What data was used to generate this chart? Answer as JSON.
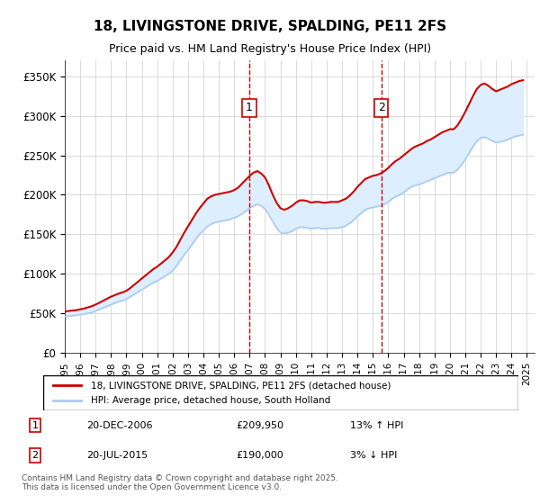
{
  "title": "18, LIVINGSTONE DRIVE, SPALDING, PE11 2FS",
  "subtitle": "Price paid vs. HM Land Registry's House Price Index (HPI)",
  "legend_line1": "18, LIVINGSTONE DRIVE, SPALDING, PE11 2FS (detached house)",
  "legend_line2": "HPI: Average price, detached house, South Holland",
  "transaction1_label": "1",
  "transaction1_date": "20-DEC-2006",
  "transaction1_price": "£209,950",
  "transaction1_hpi": "13% ↑ HPI",
  "transaction1_year": 2006.97,
  "transaction2_label": "2",
  "transaction2_date": "20-JUL-2015",
  "transaction2_price": "£190,000",
  "transaction2_hpi": "3% ↓ HPI",
  "transaction2_year": 2015.55,
  "ylabel_ticks": [
    "£0",
    "£50K",
    "£100K",
    "£150K",
    "£200K",
    "£250K",
    "£300K",
    "£350K"
  ],
  "ytick_values": [
    0,
    50000,
    100000,
    150000,
    200000,
    250000,
    300000,
    350000
  ],
  "ylim": [
    0,
    370000
  ],
  "xlim_start": 1995,
  "xlim_end": 2025.5,
  "background_color": "#ffffff",
  "plot_bg_color": "#ffffff",
  "grid_color": "#cccccc",
  "shaded_region_color": "#ddeeff",
  "red_line_color": "#cc0000",
  "blue_line_color": "#aaccee",
  "marker_line_color": "#cc0000",
  "copyright_text": "Contains HM Land Registry data © Crown copyright and database right 2025.\nThis data is licensed under the Open Government Licence v3.0.",
  "hpi_data": {
    "years": [
      1995.0,
      1995.25,
      1995.5,
      1995.75,
      1996.0,
      1996.25,
      1996.5,
      1996.75,
      1997.0,
      1997.25,
      1997.5,
      1997.75,
      1998.0,
      1998.25,
      1998.5,
      1998.75,
      1999.0,
      1999.25,
      1999.5,
      1999.75,
      2000.0,
      2000.25,
      2000.5,
      2000.75,
      2001.0,
      2001.25,
      2001.5,
      2001.75,
      2002.0,
      2002.25,
      2002.5,
      2002.75,
      2003.0,
      2003.25,
      2003.5,
      2003.75,
      2004.0,
      2004.25,
      2004.5,
      2004.75,
      2005.0,
      2005.25,
      2005.5,
      2005.75,
      2006.0,
      2006.25,
      2006.5,
      2006.75,
      2007.0,
      2007.25,
      2007.5,
      2007.75,
      2008.0,
      2008.25,
      2008.5,
      2008.75,
      2009.0,
      2009.25,
      2009.5,
      2009.75,
      2010.0,
      2010.25,
      2010.5,
      2010.75,
      2011.0,
      2011.25,
      2011.5,
      2011.75,
      2012.0,
      2012.25,
      2012.5,
      2012.75,
      2013.0,
      2013.25,
      2013.5,
      2013.75,
      2014.0,
      2014.25,
      2014.5,
      2014.75,
      2015.0,
      2015.25,
      2015.5,
      2015.75,
      2016.0,
      2016.25,
      2016.5,
      2016.75,
      2017.0,
      2017.25,
      2017.5,
      2017.75,
      2018.0,
      2018.25,
      2018.5,
      2018.75,
      2019.0,
      2019.25,
      2019.5,
      2019.75,
      2020.0,
      2020.25,
      2020.5,
      2020.75,
      2021.0,
      2021.25,
      2021.5,
      2021.75,
      2022.0,
      2022.25,
      2022.5,
      2022.75,
      2023.0,
      2023.25,
      2023.5,
      2023.75,
      2024.0,
      2024.25,
      2024.5,
      2024.75
    ],
    "values": [
      46000,
      46500,
      47000,
      47500,
      48500,
      49000,
      50000,
      51000,
      53000,
      55000,
      57000,
      59000,
      61000,
      63000,
      65000,
      66000,
      68000,
      71000,
      74000,
      77000,
      80000,
      83000,
      86000,
      89000,
      91000,
      94000,
      97000,
      100000,
      104000,
      110000,
      117000,
      124000,
      130000,
      137000,
      144000,
      150000,
      155000,
      160000,
      163000,
      165000,
      166000,
      167000,
      168000,
      169000,
      171000,
      173000,
      176000,
      179000,
      183000,
      186000,
      188000,
      186000,
      182000,
      175000,
      166000,
      158000,
      152000,
      151000,
      152000,
      154000,
      157000,
      159000,
      159000,
      158000,
      157000,
      158000,
      158000,
      157000,
      157000,
      158000,
      158000,
      158000,
      159000,
      161000,
      164000,
      168000,
      173000,
      177000,
      181000,
      183000,
      184000,
      185000,
      186000,
      188000,
      191000,
      195000,
      198000,
      200000,
      203000,
      207000,
      210000,
      212000,
      213000,
      215000,
      217000,
      219000,
      221000,
      223000,
      225000,
      227000,
      228000,
      228000,
      232000,
      238000,
      245000,
      253000,
      261000,
      268000,
      272000,
      273000,
      271000,
      268000,
      266000,
      267000,
      268000,
      270000,
      272000,
      274000,
      275000,
      276000
    ]
  },
  "red_line_data": {
    "years": [
      1995.0,
      1995.25,
      1995.5,
      1995.75,
      1996.0,
      1996.25,
      1996.5,
      1996.75,
      1997.0,
      1997.25,
      1997.5,
      1997.75,
      1998.0,
      1998.25,
      1998.5,
      1998.75,
      1999.0,
      1999.25,
      1999.5,
      1999.75,
      2000.0,
      2000.25,
      2000.5,
      2000.75,
      2001.0,
      2001.25,
      2001.5,
      2001.75,
      2002.0,
      2002.25,
      2002.5,
      2002.75,
      2003.0,
      2003.25,
      2003.5,
      2003.75,
      2004.0,
      2004.25,
      2004.5,
      2004.75,
      2005.0,
      2005.25,
      2005.5,
      2005.75,
      2006.0,
      2006.25,
      2006.5,
      2006.75,
      2007.0,
      2007.25,
      2007.5,
      2007.75,
      2008.0,
      2008.25,
      2008.5,
      2008.75,
      2009.0,
      2009.25,
      2009.5,
      2009.75,
      2010.0,
      2010.25,
      2010.5,
      2010.75,
      2011.0,
      2011.25,
      2011.5,
      2011.75,
      2012.0,
      2012.25,
      2012.5,
      2012.75,
      2013.0,
      2013.25,
      2013.5,
      2013.75,
      2014.0,
      2014.25,
      2014.5,
      2014.75,
      2015.0,
      2015.25,
      2015.5,
      2015.75,
      2016.0,
      2016.25,
      2016.5,
      2016.75,
      2017.0,
      2017.25,
      2017.5,
      2017.75,
      2018.0,
      2018.25,
      2018.5,
      2018.75,
      2019.0,
      2019.25,
      2019.5,
      2019.75,
      2020.0,
      2020.25,
      2020.5,
      2020.75,
      2021.0,
      2021.25,
      2021.5,
      2021.75,
      2022.0,
      2022.25,
      2022.5,
      2022.75,
      2023.0,
      2023.25,
      2023.5,
      2023.75,
      2024.0,
      2024.25,
      2024.5,
      2024.75
    ],
    "values": [
      52000,
      53000,
      53500,
      54000,
      55000,
      56000,
      57500,
      59000,
      61000,
      63500,
      66000,
      68500,
      71000,
      73000,
      75000,
      76500,
      78500,
      82000,
      86000,
      90000,
      94000,
      98000,
      102000,
      106000,
      109000,
      113000,
      117000,
      121000,
      127000,
      134000,
      143000,
      152000,
      160000,
      168000,
      176000,
      183000,
      189000,
      195000,
      198000,
      200000,
      201000,
      202000,
      203000,
      204000,
      206000,
      209000,
      214000,
      219000,
      224000,
      228000,
      230000,
      227000,
      222000,
      212000,
      200000,
      190000,
      183000,
      181000,
      183000,
      186000,
      190000,
      193000,
      193000,
      192000,
      190000,
      191000,
      191000,
      190000,
      190000,
      191000,
      191000,
      191000,
      193000,
      195000,
      199000,
      204000,
      210000,
      215000,
      220000,
      222000,
      224000,
      225000,
      227000,
      230000,
      234000,
      239000,
      243000,
      246000,
      250000,
      254000,
      258000,
      261000,
      263000,
      265000,
      268000,
      270000,
      273000,
      276000,
      279000,
      281000,
      283000,
      283000,
      288000,
      296000,
      305000,
      315000,
      325000,
      334000,
      339000,
      341000,
      338000,
      334000,
      331000,
      333000,
      335000,
      337000,
      340000,
      342000,
      344000,
      345000
    ]
  }
}
